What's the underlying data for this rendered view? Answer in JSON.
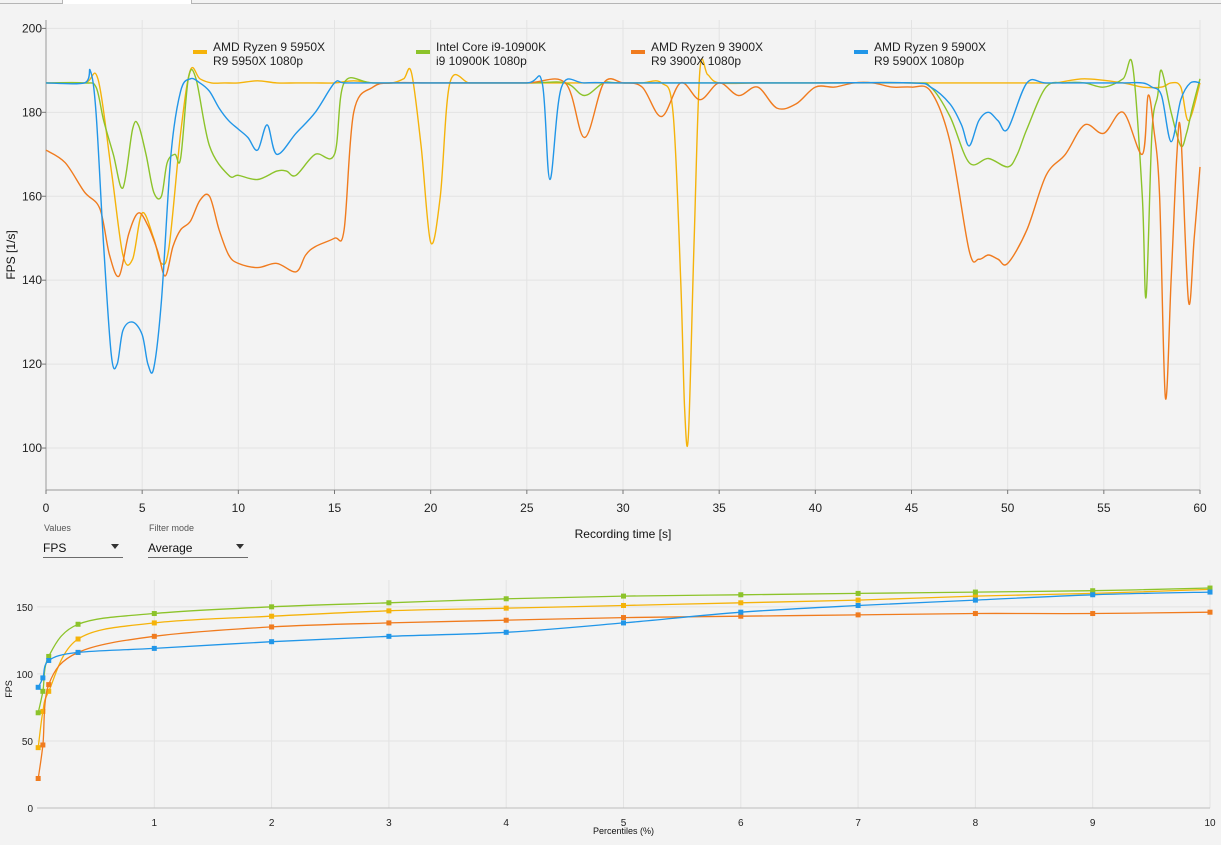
{
  "controls": {
    "values_label": "Values",
    "values_selected": "FPS",
    "filter_label": "Filter mode",
    "filter_selected": "Average"
  },
  "chart_data": [
    {
      "type": "line",
      "xlabel": "Recording time [s]",
      "ylabel": "FPS [1/s]",
      "xlim": [
        0,
        60
      ],
      "ylim": [
        90,
        202
      ],
      "xticks": [
        0,
        5,
        10,
        15,
        20,
        25,
        30,
        35,
        40,
        45,
        50,
        55,
        60
      ],
      "yticks": [
        100,
        120,
        140,
        160,
        180,
        200
      ],
      "grid": true,
      "legend_position": "top",
      "series": [
        {
          "name": "AMD Ryzen 9 5950X",
          "subname": "R9 5950X 1080p",
          "color": "#f5b30a",
          "x": [
            0,
            2,
            2.7,
            3.4,
            4,
            4.5,
            5,
            5.6,
            6,
            6.4,
            7,
            7.5,
            8,
            8.6,
            9.3,
            10,
            11,
            12,
            13,
            14,
            15,
            16,
            17,
            18,
            18.6,
            19,
            19.5,
            20,
            20.5,
            21,
            22,
            23,
            25,
            27,
            30,
            31,
            32,
            32.6,
            33,
            33.2,
            33.4,
            33.7,
            34,
            34.4,
            35,
            37,
            40,
            42,
            44,
            46,
            48,
            50,
            50.8,
            51.5,
            52.5,
            54,
            56,
            57,
            58,
            58.5,
            59,
            59.4,
            60
          ],
          "y": [
            187,
            187,
            188,
            166,
            146,
            145,
            156,
            150,
            144,
            148,
            175,
            190,
            188,
            187,
            187,
            187,
            187.5,
            187,
            187,
            187,
            187,
            187.5,
            187,
            187,
            188,
            189.5,
            172,
            149,
            160,
            187,
            187,
            187,
            187,
            187,
            187,
            187,
            187,
            180,
            140,
            110,
            103,
            150,
            190,
            189,
            187,
            187,
            187,
            187,
            187,
            187,
            187,
            187,
            187,
            187,
            187,
            188,
            187,
            186,
            186,
            187,
            186,
            178,
            187
          ]
        },
        {
          "name": "Intel Core i9-10900K",
          "subname": "i9 10900K 1080p",
          "color": "#8cc32a",
          "x": [
            0,
            2,
            2.6,
            3,
            3.5,
            4,
            4.5,
            4.8,
            5.2,
            5.6,
            6,
            6.3,
            6.7,
            7,
            7.4,
            7.8,
            8.5,
            9.5,
            10,
            11,
            12,
            12.5,
            13,
            14,
            15,
            15.5,
            17,
            20,
            25,
            27,
            28,
            29,
            30,
            35,
            40,
            45,
            46,
            47,
            48,
            49,
            50,
            50.5,
            51,
            52,
            53,
            54,
            55,
            56,
            56.5,
            57,
            57.2,
            57.5,
            57.8,
            58,
            58.5,
            59,
            59.3,
            59.6,
            60
          ],
          "y": [
            187,
            187,
            186,
            178,
            170,
            162,
            176,
            177,
            170,
            161,
            160,
            168,
            170,
            169,
            188,
            188,
            172,
            165,
            165,
            164,
            166,
            166,
            165,
            170,
            170,
            187,
            187,
            187,
            187,
            187,
            184,
            187,
            187,
            187,
            187,
            187,
            186,
            179,
            168,
            169,
            167,
            170,
            176,
            186,
            187,
            187,
            186,
            188,
            191,
            160,
            136,
            175,
            184,
            190,
            180,
            172,
            175,
            181,
            188
          ]
        },
        {
          "name": "AMD Ryzen 9 3900X",
          "subname": "R9 3900X 1080p",
          "color": "#f07b1e",
          "x": [
            0,
            1,
            2,
            2.8,
            3.3,
            3.8,
            4.3,
            4.8,
            5.3,
            5.8,
            6.2,
            6.6,
            7,
            7.5,
            8,
            8.5,
            9,
            9.5,
            10,
            11,
            12,
            13,
            13.5,
            14,
            15,
            15.5,
            16,
            17,
            18,
            20,
            22,
            25,
            27,
            28,
            29,
            30,
            31,
            32,
            33,
            34,
            35,
            36,
            37,
            38,
            39,
            40,
            41,
            42,
            43,
            44,
            45,
            46,
            47,
            48,
            48.5,
            49,
            49.5,
            50,
            51,
            52,
            53,
            54,
            55,
            56,
            57,
            57.3,
            57.6,
            57.9,
            58.2,
            58.5,
            58.8,
            59,
            59.4,
            59.7,
            60
          ],
          "y": [
            171,
            168,
            161,
            157,
            146,
            141,
            151,
            156,
            153,
            147,
            141,
            148,
            152,
            154,
            159,
            160,
            152,
            146,
            144,
            143,
            144,
            142,
            146,
            148,
            150,
            152,
            180,
            186,
            187,
            187,
            187,
            187,
            187,
            174,
            187,
            187,
            186,
            179,
            187,
            183,
            187,
            184,
            186,
            181,
            182,
            186,
            186,
            187,
            187,
            186,
            186,
            185,
            173,
            147,
            145,
            146,
            145,
            144,
            152,
            165,
            170,
            177,
            175,
            180,
            170,
            184,
            176,
            160,
            112,
            140,
            170,
            175,
            135,
            150,
            167
          ]
        },
        {
          "name": "AMD Ryzen 9 5900X",
          "subname": "R9 5900X 1080p",
          "color": "#2196e8",
          "x": [
            0,
            2,
            2.3,
            2.6,
            3,
            3.4,
            3.7,
            4,
            4.5,
            5,
            5.3,
            5.6,
            6,
            6.5,
            7,
            7.5,
            8,
            8.5,
            9,
            9.5,
            10,
            10.5,
            11,
            11.5,
            12,
            13,
            14,
            15,
            15.5,
            17,
            20,
            22,
            25,
            25.8,
            26.2,
            26.8,
            28,
            30,
            35,
            40,
            45,
            46,
            47,
            47.6,
            48,
            48.5,
            49,
            49.5,
            50,
            51,
            52,
            54,
            56,
            57,
            57.5,
            58,
            58.5,
            59,
            59.5,
            60
          ],
          "y": [
            187,
            187,
            190,
            180,
            148,
            122,
            120,
            128,
            130,
            127,
            120,
            119,
            135,
            170,
            185,
            188,
            187,
            185,
            181,
            178,
            176,
            174,
            171,
            177,
            170,
            175,
            180,
            187,
            187,
            187,
            187,
            187,
            187,
            187,
            164,
            186,
            187,
            187,
            187,
            187,
            187,
            186,
            182,
            177,
            172,
            178,
            180,
            178,
            176,
            187,
            187,
            187,
            187,
            187,
            186,
            184,
            173,
            183,
            187,
            187
          ]
        }
      ]
    },
    {
      "type": "line",
      "xlabel": "Percentiles (%)",
      "ylabel": "FPS",
      "xlim": [
        0,
        10
      ],
      "ylim": [
        0,
        170
      ],
      "xticks": [
        1,
        2,
        3,
        4,
        5,
        6,
        7,
        8,
        9,
        10
      ],
      "yticks": [
        0,
        50,
        100,
        150
      ],
      "grid": true,
      "series": [
        {
          "name": "AMD Ryzen 9 5950X",
          "color": "#f5b30a",
          "x": [
            0.01,
            0.05,
            0.1,
            0.35,
            1,
            2,
            3,
            4,
            5,
            6,
            7,
            8,
            9,
            10
          ],
          "y": [
            45,
            72,
            87,
            126,
            138,
            143,
            147,
            149,
            151,
            153,
            155,
            158,
            160,
            163
          ]
        },
        {
          "name": "Intel Core i9-10900K",
          "color": "#8cc32a",
          "x": [
            0.01,
            0.05,
            0.1,
            0.35,
            1,
            2,
            3,
            4,
            5,
            6,
            7,
            8,
            9,
            10
          ],
          "y": [
            71,
            87,
            113,
            137,
            145,
            150,
            153,
            156,
            158,
            159,
            160,
            161,
            162,
            164
          ]
        },
        {
          "name": "AMD Ryzen 9 3900X",
          "color": "#f07b1e",
          "x": [
            0.01,
            0.05,
            0.1,
            0.35,
            1,
            2,
            3,
            4,
            5,
            6,
            7,
            8,
            9,
            10
          ],
          "y": [
            22,
            47,
            92,
            116,
            128,
            135,
            138,
            140,
            142,
            143,
            144,
            145,
            145,
            146
          ]
        },
        {
          "name": "AMD Ryzen 9 5900X",
          "color": "#2196e8",
          "x": [
            0.01,
            0.05,
            0.1,
            0.35,
            1,
            2,
            3,
            4,
            5,
            6,
            7,
            8,
            9,
            10
          ],
          "y": [
            90,
            97,
            110,
            116,
            119,
            124,
            128,
            131,
            138,
            146,
            151,
            155,
            159,
            161
          ]
        }
      ]
    }
  ]
}
